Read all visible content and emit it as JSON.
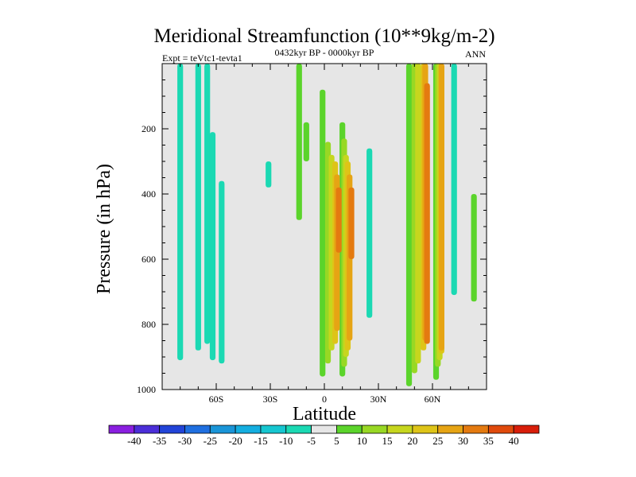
{
  "chart_data": {
    "type": "contour",
    "title": "Meridional Streamfunction (10**9kg/m-2)",
    "left_note": "Expt = teVtc1-tevta1",
    "center_note": "0432kyr BP - 0000kyr BP",
    "right_note": "ANN",
    "xlabel": "Latitude",
    "ylabel": "Pressure (in hPa)",
    "x_range": [
      -90,
      90
    ],
    "y_range": [
      0,
      1000
    ],
    "x_ticks": [
      {
        "value": -60,
        "label": "60S"
      },
      {
        "value": -30,
        "label": "30S"
      },
      {
        "value": 0,
        "label": "0"
      },
      {
        "value": 30,
        "label": "30N"
      },
      {
        "value": 60,
        "label": "60N"
      }
    ],
    "y_ticks": [
      {
        "value": 200,
        "label": "200"
      },
      {
        "value": 400,
        "label": "400"
      },
      {
        "value": 600,
        "label": "600"
      },
      {
        "value": 800,
        "label": "800"
      },
      {
        "value": 1000,
        "label": "1000"
      }
    ],
    "levels": [
      -40,
      -35,
      -30,
      -25,
      -20,
      -15,
      -10,
      -5,
      5,
      10,
      15,
      20,
      25,
      30,
      35,
      40
    ],
    "colors": [
      "#8a1fe0",
      "#4b2ed8",
      "#2244d8",
      "#1f6fe0",
      "#1a95d8",
      "#14aee0",
      "#16c6d0",
      "#1bd9b3",
      "#e6e6e6",
      "#5bd42b",
      "#98d824",
      "#c6d61e",
      "#dec418",
      "#e6a414",
      "#e47a10",
      "#e04a0c",
      "#d81e0a"
    ],
    "contours": [
      {
        "level": -5,
        "cells": [
          [
            -80,
            0,
            1,
            910
          ],
          [
            -70,
            0,
            1,
            880
          ],
          [
            -65,
            0,
            1,
            860
          ],
          [
            -62,
            210,
            1,
            910
          ],
          [
            -57,
            360,
            1,
            920
          ],
          [
            -31,
            300,
            1,
            380
          ],
          [
            25,
            260,
            1,
            780
          ],
          [
            72,
            0,
            1,
            710
          ]
        ]
      },
      {
        "level": 5,
        "cells": [
          [
            -14,
            0,
            1,
            480
          ],
          [
            -10,
            180,
            1,
            300
          ],
          [
            -1,
            80,
            1,
            960
          ],
          [
            10,
            180,
            1,
            960
          ],
          [
            47,
            0,
            1,
            990
          ],
          [
            62,
            0,
            1,
            970
          ],
          [
            83,
            400,
            1,
            730
          ]
        ]
      },
      {
        "level": 10,
        "cells": [
          [
            2,
            240,
            1,
            920
          ],
          [
            11,
            230,
            1,
            930
          ],
          [
            50,
            0,
            1,
            950
          ],
          [
            63,
            0,
            1,
            930
          ]
        ]
      },
      {
        "level": 15,
        "cells": [
          [
            4,
            280,
            1,
            880
          ],
          [
            12,
            280,
            1,
            900
          ],
          [
            52,
            0,
            1,
            920
          ],
          [
            64,
            0,
            1,
            910
          ]
        ]
      },
      {
        "level": 20,
        "cells": [
          [
            6,
            300,
            1,
            860
          ],
          [
            13,
            300,
            1,
            880
          ],
          [
            55,
            0,
            1,
            880
          ],
          [
            65,
            0,
            1,
            890
          ]
        ]
      },
      {
        "level": 25,
        "cells": [
          [
            7,
            340,
            1,
            820
          ],
          [
            14,
            340,
            1,
            850
          ],
          [
            56,
            0,
            1,
            850
          ],
          [
            65,
            0,
            1,
            880
          ]
        ]
      },
      {
        "level": 30,
        "cells": [
          [
            8,
            380,
            1,
            580
          ],
          [
            15,
            380,
            1,
            600
          ],
          [
            57,
            60,
            1,
            860
          ]
        ]
      }
    ]
  }
}
